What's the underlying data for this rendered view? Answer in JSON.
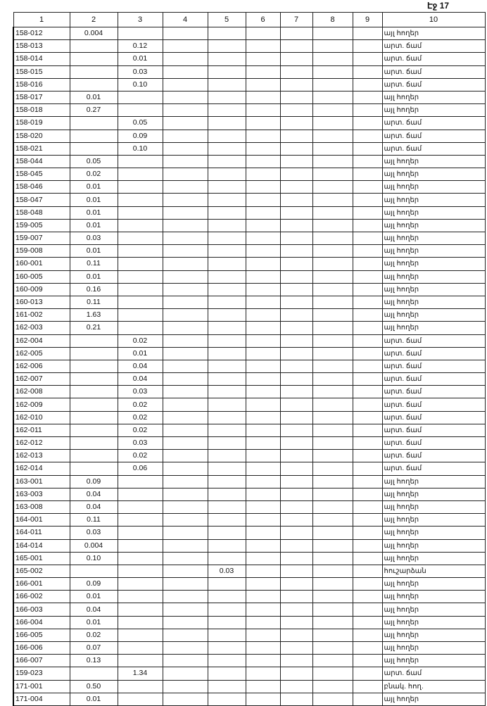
{
  "page_label": "Էջ 17",
  "columns": [
    "1",
    "2",
    "3",
    "4",
    "5",
    "6",
    "7",
    "8",
    "9",
    "10"
  ],
  "rows": [
    {
      "c1": "158-012",
      "c2": "0.004",
      "c3": "",
      "c5": "",
      "c10": "այլ հողեր"
    },
    {
      "c1": "158-013",
      "c2": "",
      "c3": "0.12",
      "c5": "",
      "c10": "արտ. ճամ"
    },
    {
      "c1": "158-014",
      "c2": "",
      "c3": "0.01",
      "c5": "",
      "c10": "արտ. ճամ"
    },
    {
      "c1": "158-015",
      "c2": "",
      "c3": "0.03",
      "c5": "",
      "c10": "արտ. ճամ"
    },
    {
      "c1": "158-016",
      "c2": "",
      "c3": "0.10",
      "c5": "",
      "c10": "արտ. ճամ"
    },
    {
      "c1": "158-017",
      "c2": "0.01",
      "c3": "",
      "c5": "",
      "c10": "այլ հողեր"
    },
    {
      "c1": "158-018",
      "c2": "0.27",
      "c3": "",
      "c5": "",
      "c10": "այլ հողեր"
    },
    {
      "c1": "158-019",
      "c2": "",
      "c3": "0.05",
      "c5": "",
      "c10": "արտ. ճամ"
    },
    {
      "c1": "158-020",
      "c2": "",
      "c3": "0.09",
      "c5": "",
      "c10": "արտ. ճամ"
    },
    {
      "c1": "158-021",
      "c2": "",
      "c3": "0.10",
      "c5": "",
      "c10": "արտ. ճամ"
    },
    {
      "c1": "158-044",
      "c2": "0.05",
      "c3": "",
      "c5": "",
      "c10": "այլ հողեր"
    },
    {
      "c1": "158-045",
      "c2": "0.02",
      "c3": "",
      "c5": "",
      "c10": "այլ հողեր"
    },
    {
      "c1": "158-046",
      "c2": "0.01",
      "c3": "",
      "c5": "",
      "c10": "այլ հողեր"
    },
    {
      "c1": "158-047",
      "c2": "0.01",
      "c3": "",
      "c5": "",
      "c10": "այլ հողեր"
    },
    {
      "c1": "158-048",
      "c2": "0.01",
      "c3": "",
      "c5": "",
      "c10": "այլ հողեր"
    },
    {
      "c1": "159-005",
      "c2": "0.01",
      "c3": "",
      "c5": "",
      "c10": "այլ հողեր"
    },
    {
      "c1": "159-007",
      "c2": "0.03",
      "c3": "",
      "c5": "",
      "c10": "այլ հողեր"
    },
    {
      "c1": "159-008",
      "c2": "0.01",
      "c3": "",
      "c5": "",
      "c10": "այլ հողեր"
    },
    {
      "c1": "160-001",
      "c2": "0.11",
      "c3": "",
      "c5": "",
      "c10": "այլ հողեր"
    },
    {
      "c1": "160-005",
      "c2": "0.01",
      "c3": "",
      "c5": "",
      "c10": "այլ հողեր"
    },
    {
      "c1": "160-009",
      "c2": "0.16",
      "c3": "",
      "c5": "",
      "c10": "այլ հողեր"
    },
    {
      "c1": "160-013",
      "c2": "0.11",
      "c3": "",
      "c5": "",
      "c10": "այլ հողեր"
    },
    {
      "c1": "161-002",
      "c2": "1.63",
      "c3": "",
      "c5": "",
      "c10": "այլ հողեր"
    },
    {
      "c1": "162-003",
      "c2": "0.21",
      "c3": "",
      "c5": "",
      "c10": "այլ հողեր"
    },
    {
      "c1": "162-004",
      "c2": "",
      "c3": "0.02",
      "c5": "",
      "c10": "արտ. ճամ"
    },
    {
      "c1": "162-005",
      "c2": "",
      "c3": "0.01",
      "c5": "",
      "c10": "արտ. ճամ"
    },
    {
      "c1": "162-006",
      "c2": "",
      "c3": "0.04",
      "c5": "",
      "c10": "արտ. ճամ"
    },
    {
      "c1": "162-007",
      "c2": "",
      "c3": "0.04",
      "c5": "",
      "c10": "արտ. ճամ"
    },
    {
      "c1": "162-008",
      "c2": "",
      "c3": "0.03",
      "c5": "",
      "c10": "արտ. ճամ"
    },
    {
      "c1": "162-009",
      "c2": "",
      "c3": "0.02",
      "c5": "",
      "c10": "արտ. ճամ"
    },
    {
      "c1": "162-010",
      "c2": "",
      "c3": "0.02",
      "c5": "",
      "c10": "արտ. ճամ"
    },
    {
      "c1": "162-011",
      "c2": "",
      "c3": "0.02",
      "c5": "",
      "c10": "արտ. ճամ"
    },
    {
      "c1": "162-012",
      "c2": "",
      "c3": "0.03",
      "c5": "",
      "c10": "արտ. ճամ"
    },
    {
      "c1": "162-013",
      "c2": "",
      "c3": "0.02",
      "c5": "",
      "c10": "արտ. ճամ"
    },
    {
      "c1": "162-014",
      "c2": "",
      "c3": "0.06",
      "c5": "",
      "c10": "արտ. ճամ"
    },
    {
      "c1": "163-001",
      "c2": "0.09",
      "c3": "",
      "c5": "",
      "c10": "այլ հողեր"
    },
    {
      "c1": "163-003",
      "c2": "0.04",
      "c3": "",
      "c5": "",
      "c10": "այլ հողեր"
    },
    {
      "c1": "163-008",
      "c2": "0.04",
      "c3": "",
      "c5": "",
      "c10": "այլ հողեր"
    },
    {
      "c1": "164-001",
      "c2": "0.11",
      "c3": "",
      "c5": "",
      "c10": "այլ հողեր"
    },
    {
      "c1": "164-011",
      "c2": "0.03",
      "c3": "",
      "c5": "",
      "c10": "այլ հողեր"
    },
    {
      "c1": "164-014",
      "c2": "0.004",
      "c3": "",
      "c5": "",
      "c10": "այլ հողեր"
    },
    {
      "c1": "165-001",
      "c2": "0.10",
      "c3": "",
      "c5": "",
      "c10": "այլ հողեր"
    },
    {
      "c1": "165-002",
      "c2": "",
      "c3": "",
      "c5": "0.03",
      "c10": "հուշարձան"
    },
    {
      "c1": "166-001",
      "c2": "0.09",
      "c3": "",
      "c5": "",
      "c10": "այլ հողեր"
    },
    {
      "c1": "166-002",
      "c2": "0.01",
      "c3": "",
      "c5": "",
      "c10": "այլ հողեր"
    },
    {
      "c1": "166-003",
      "c2": "0.04",
      "c3": "",
      "c5": "",
      "c10": "այլ հողեր"
    },
    {
      "c1": "166-004",
      "c2": "0.01",
      "c3": "",
      "c5": "",
      "c10": "այլ հողեր"
    },
    {
      "c1": "166-005",
      "c2": "0.02",
      "c3": "",
      "c5": "",
      "c10": "այլ հողեր"
    },
    {
      "c1": "166-006",
      "c2": "0.07",
      "c3": "",
      "c5": "",
      "c10": "այլ հողեր"
    },
    {
      "c1": "166-007",
      "c2": "0.13",
      "c3": "",
      "c5": "",
      "c10": "այլ հողեր"
    },
    {
      "c1": "159-023",
      "c2": "",
      "c3": "1.34",
      "c5": "",
      "c10": "արտ. ճամ"
    },
    {
      "c1": "171-001",
      "c2": "0.50",
      "c3": "",
      "c5": "",
      "c10": "բնակ. հող."
    },
    {
      "c1": "171-004",
      "c2": "0.01",
      "c3": "",
      "c5": "",
      "c10": "այլ հողեր"
    }
  ]
}
